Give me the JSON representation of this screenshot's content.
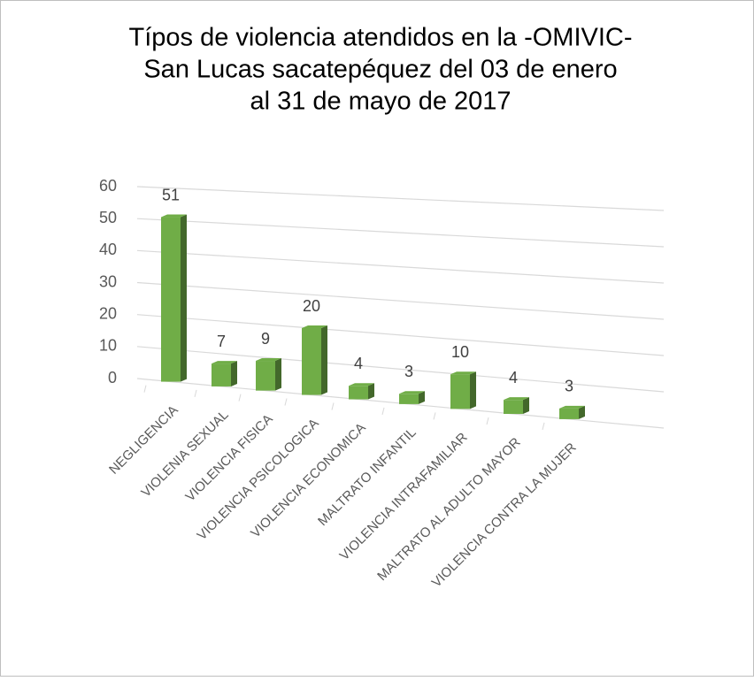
{
  "chart_data": {
    "type": "bar3d",
    "title": [
      "Típos de violencia atendidos en la -OMIVIC-",
      "San Lucas sacatepéquez del 03 de enero",
      "al 31 de mayo de 2017"
    ],
    "categories": [
      "NEGLIGENCIA",
      "VIOLENIA SEXUAL",
      "VIOLENCIA FISICA",
      "VIOLENCIA PSICOLOGICA",
      "VIOLENCIA ECONOMICA",
      "MALTRATO INFANTIL",
      "VIOLENCIA INTRAFAMILIAR",
      "MALTRATO AL ADULTO MAYOR",
      "VIOLENCIA CONTRA LA MUJER"
    ],
    "values": [
      51,
      7,
      9,
      20,
      4,
      3,
      10,
      4,
      3
    ],
    "color": "#70ad47",
    "ylim": [
      0,
      60
    ],
    "yticks": [
      0,
      10,
      20,
      30,
      40,
      50,
      60
    ],
    "grid": true
  }
}
